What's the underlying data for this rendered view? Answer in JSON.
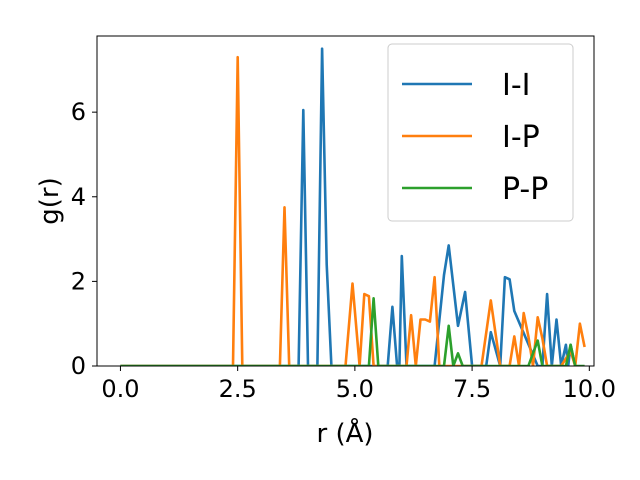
{
  "chart_data": {
    "type": "line",
    "title": "",
    "xlabel": "r (Å)",
    "ylabel": "g(r)",
    "xlim": [
      -0.5,
      10.1
    ],
    "ylim": [
      0,
      7.8
    ],
    "xticks": [
      {
        "value": 0.0,
        "label": "0.0"
      },
      {
        "value": 2.5,
        "label": "2.5"
      },
      {
        "value": 5.0,
        "label": "5.0"
      },
      {
        "value": 7.5,
        "label": "7.5"
      },
      {
        "value": 10.0,
        "label": "10.0"
      }
    ],
    "yticks": [
      {
        "value": 0,
        "label": "0"
      },
      {
        "value": 2,
        "label": "2"
      },
      {
        "value": 4,
        "label": "4"
      },
      {
        "value": 6,
        "label": "6"
      }
    ],
    "grid": false,
    "legend_position": "top-right",
    "series": [
      {
        "name": "I-I",
        "color": "#1f77b4",
        "x": [
          0.0,
          3.8,
          3.9,
          4.0,
          4.2,
          4.3,
          4.4,
          4.5,
          5.7,
          5.8,
          5.9,
          5.95,
          6.0,
          6.1,
          6.7,
          6.9,
          7.0,
          7.2,
          7.35,
          7.5,
          7.8,
          7.9,
          8.1,
          8.2,
          8.3,
          8.4,
          8.9,
          9.0,
          9.1,
          9.2,
          9.3,
          9.4,
          9.5,
          9.55,
          9.6,
          9.7
        ],
        "y": [
          0,
          0,
          6.05,
          0,
          0,
          7.5,
          2.4,
          0,
          0,
          1.4,
          0,
          0,
          2.6,
          0,
          0,
          2.15,
          2.85,
          0.95,
          1.75,
          0,
          0,
          0.8,
          0,
          2.1,
          2.05,
          1.3,
          0,
          0,
          1.7,
          0,
          1.1,
          0,
          0.5,
          0,
          0.5,
          0
        ]
      },
      {
        "name": "I-P",
        "color": "#ff7f0e",
        "x": [
          0.0,
          2.4,
          2.5,
          2.6,
          3.4,
          3.5,
          3.6,
          4.8,
          4.95,
          5.1,
          5.2,
          5.3,
          5.4,
          5.5,
          6.1,
          6.2,
          6.3,
          6.4,
          6.5,
          6.6,
          6.7,
          6.8,
          7.7,
          7.9,
          8.1,
          8.3,
          8.4,
          8.5,
          8.6,
          8.7,
          8.8,
          8.9,
          9.0,
          9.1,
          9.4,
          9.6,
          9.7,
          9.8,
          9.9
        ],
        "y": [
          0,
          0,
          7.3,
          0,
          0,
          3.75,
          0,
          0,
          1.95,
          0,
          1.7,
          1.65,
          0,
          0,
          0,
          1.2,
          0,
          1.1,
          1.1,
          1.05,
          2.1,
          0,
          0,
          1.55,
          0,
          0,
          0.7,
          0,
          1.25,
          0.7,
          0,
          1.15,
          0.65,
          0,
          0,
          0.35,
          0,
          1.0,
          0.45
        ]
      },
      {
        "name": "P-P",
        "color": "#2ca02c",
        "x": [
          0.0,
          5.3,
          5.4,
          5.5,
          6.9,
          7.0,
          7.1,
          7.2,
          7.3,
          8.7,
          8.8,
          8.9,
          9.0,
          9.1,
          9.5,
          9.6,
          9.7,
          9.9
        ],
        "y": [
          0,
          0,
          1.6,
          0,
          0,
          0.95,
          0,
          0.3,
          0,
          0,
          0.3,
          0.6,
          0,
          0,
          0,
          0.5,
          0,
          0
        ]
      }
    ]
  }
}
